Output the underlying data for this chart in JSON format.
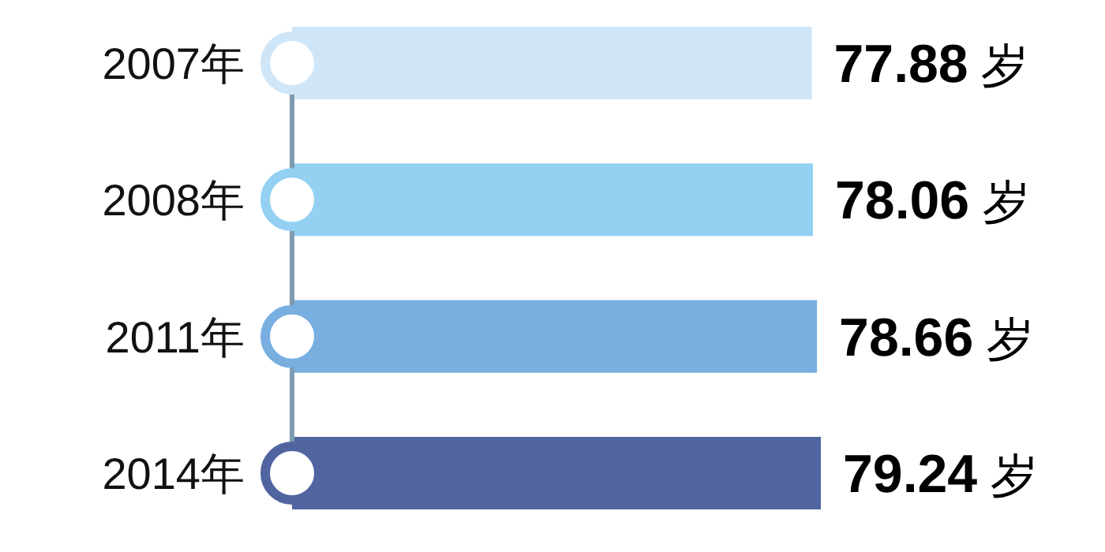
{
  "chart_data": {
    "type": "bar",
    "orientation": "horizontal",
    "categories": [
      "2007年",
      "2008年",
      "2011年",
      "2014年"
    ],
    "values": [
      77.88,
      78.06,
      78.66,
      79.24
    ],
    "colors": [
      "#cfe6f8",
      "#93d0f2",
      "#78aee0",
      "#5064a0"
    ],
    "value_labels": [
      "77.88 岁",
      "78.06 岁",
      "78.66 岁",
      "79.24 岁"
    ]
  }
}
